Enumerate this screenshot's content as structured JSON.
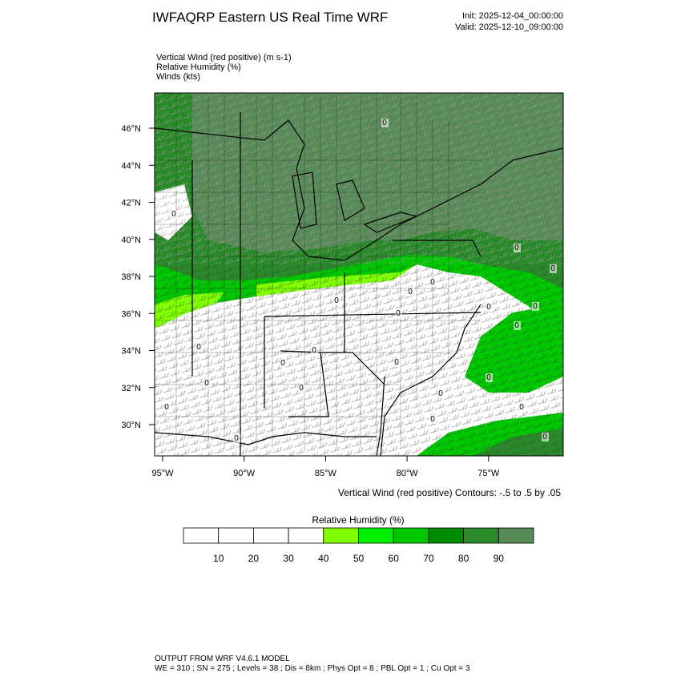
{
  "header": {
    "title": "IWFAQRP Eastern US Real Time WRF",
    "init": "Init: 2025-12-04_00:00:00",
    "valid": "Valid: 2025-12-10_09:00:00"
  },
  "fields": [
    "Vertical Wind (red positive)   (m s-1)",
    "Relative Humidity   (%)",
    "Winds   (kts)"
  ],
  "map": {
    "lat_labels": [
      "46°N",
      "44°N",
      "42°N",
      "40°N",
      "38°N",
      "36°N",
      "34°N",
      "32°N",
      "30°N"
    ],
    "lon_labels": [
      "95°W",
      "90°W",
      "85°W",
      "80°W",
      "75°W"
    ],
    "contour_label": "0",
    "contour_note": "Vertical Wind (red positive) Contours: -.5 to .5 by .05"
  },
  "colorbar": {
    "title": "Relative Humidity  (%)",
    "labels": [
      "10",
      "20",
      "30",
      "40",
      "50",
      "60",
      "70",
      "80",
      "90"
    ],
    "colors": [
      "#ffffff",
      "#ffffff",
      "#ffffff",
      "#ffffff",
      "#80ff00",
      "#00f000",
      "#00c800",
      "#008c00",
      "#2a8a2a",
      "#578a57"
    ]
  },
  "footer": [
    "OUTPUT FROM WRF V4.6.1 MODEL",
    "WE = 310 ; SN = 275 ; Levels = 38 ; Dis = 8km ; Phys Opt = 8 ; PBL Opt = 1 ; Cu Opt = 3"
  ]
}
